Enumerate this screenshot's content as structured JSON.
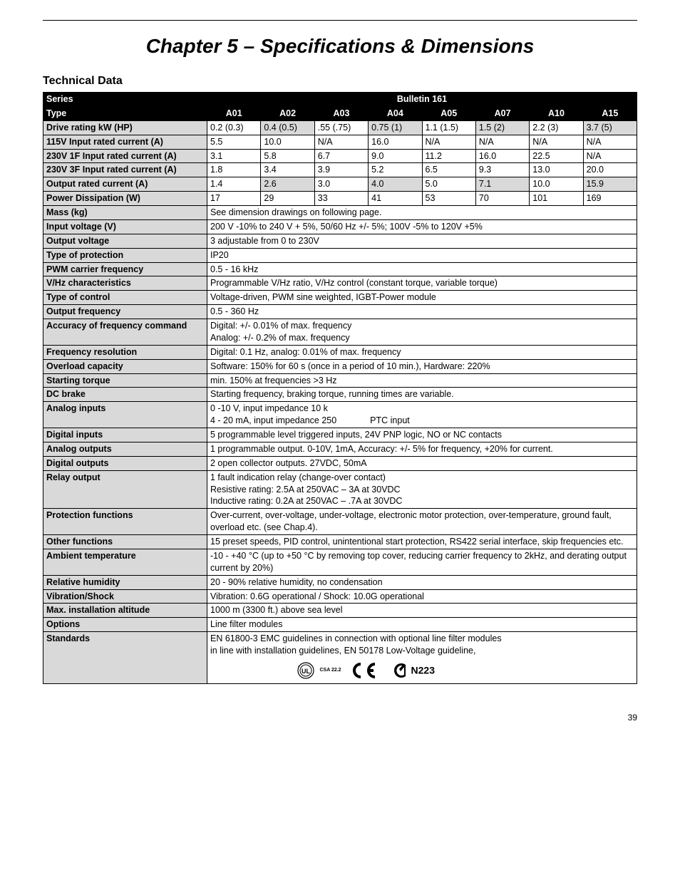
{
  "page": {
    "chapter_title": "Chapter 5 – Specifications & Dimensions",
    "section_title": "Technical Data",
    "page_number": "39"
  },
  "table": {
    "series_label": "Series",
    "series_value": "Bulletin 161",
    "type_label": "Type",
    "type_cols": [
      "A01",
      "A02",
      "A03",
      "A04",
      "A05",
      "A07",
      "A10",
      "A15"
    ],
    "numeric_rows": [
      {
        "label": "Drive rating kW (HP)",
        "cells": [
          "0.2 (0.3)",
          "0.4 (0.5)",
          ".55 (.75)",
          "0.75 (1)",
          "1.1 (1.5)",
          "1.5 (2)",
          "2.2 (3)",
          "3.7 (5)"
        ],
        "shaded": [
          false,
          true,
          false,
          true,
          false,
          true,
          false,
          true
        ]
      },
      {
        "label": "115V Input rated current (A)",
        "cells": [
          "5.5",
          "10.0",
          "N/A",
          "16.0",
          "N/A",
          "N/A",
          "N/A",
          "N/A"
        ],
        "shaded": [
          false,
          false,
          false,
          false,
          false,
          false,
          false,
          false
        ]
      },
      {
        "label": "230V 1F Input rated current (A)",
        "cells": [
          "3.1",
          "5.8",
          "6.7",
          "9.0",
          "11.2",
          "16.0",
          "22.5",
          "N/A"
        ],
        "shaded": [
          false,
          false,
          false,
          false,
          false,
          false,
          false,
          false
        ]
      },
      {
        "label": "230V 3F Input rated current (A)",
        "cells": [
          "1.8",
          "3.4",
          "3.9",
          "5.2",
          "6.5",
          "9.3",
          "13.0",
          "20.0"
        ],
        "shaded": [
          false,
          false,
          false,
          false,
          false,
          false,
          false,
          false
        ]
      },
      {
        "label": "Output rated current (A)",
        "cells": [
          "1.4",
          "2.6",
          "3.0",
          "4.0",
          "5.0",
          "7.1",
          "10.0",
          "15.9"
        ],
        "shaded": [
          false,
          true,
          false,
          true,
          false,
          true,
          false,
          true
        ]
      },
      {
        "label": "Power Dissipation (W)",
        "cells": [
          "17",
          "29",
          "33",
          "41",
          "53",
          "70",
          "101",
          "169"
        ],
        "shaded": [
          false,
          false,
          false,
          false,
          false,
          false,
          false,
          false
        ]
      }
    ],
    "text_rows": [
      {
        "label": "Mass (kg)",
        "value": "See dimension drawings on following page."
      },
      {
        "label": "Input voltage (V)",
        "value": "200 V -10% to 240 V + 5%, 50/60 Hz +/- 5%; 100V -5% to 120V +5%"
      },
      {
        "label": "Output voltage",
        "value": "3      adjustable from 0 to 230V"
      },
      {
        "label": "Type of protection",
        "value": "IP20"
      },
      {
        "label": "PWM carrier frequency",
        "value": "0.5 - 16 kHz"
      },
      {
        "label": "V/Hz characteristics",
        "value": "Programmable V/Hz ratio, V/Hz control (constant torque, variable torque)"
      },
      {
        "label": "Type of control",
        "value": "Voltage-driven, PWM sine weighted, IGBT-Power module"
      },
      {
        "label": "Output frequency",
        "value": "0.5 - 360 Hz"
      }
    ],
    "accuracy_row": {
      "label": "Accuracy of frequency command",
      "line1": "Digital:    +/- 0.01% of max. frequency",
      "line2": "Analog:   +/- 0.2% of max. frequency"
    },
    "text_rows2": [
      {
        "label": "Frequency resolution",
        "value": "Digital: 0.1 Hz, analog: 0.01% of max. frequency"
      },
      {
        "label": "Overload capacity",
        "value": "Software: 150% for 60 s (once in a period of 10 min.), Hardware: 220%"
      },
      {
        "label": "Starting torque",
        "value": "min. 150% at frequencies >3 Hz"
      },
      {
        "label": "DC brake",
        "value": "Starting frequency, braking torque, running times are variable."
      }
    ],
    "analog_inputs_row": {
      "label": "Analog inputs",
      "line1": "0 -10 V, input impedance 10 k",
      "line2_a": "4 - 20 mA, input impedance 250",
      "line2_b": "PTC input"
    },
    "text_rows3": [
      {
        "label": "Digital inputs",
        "value": "5 programmable level triggered inputs, 24V PNP logic, NO or NC contacts"
      },
      {
        "label": "Analog outputs",
        "value": "1 programmable output. 0-10V, 1mA, Accuracy: +/- 5% for frequency, +20% for current."
      },
      {
        "label": "Digital outputs",
        "value": "2 open collector outputs. 27VDC, 50mA"
      }
    ],
    "relay_row": {
      "label": "Relay output",
      "line1": "1 fault indication relay (change-over contact)",
      "line2": "Resistive rating: 2.5A at 250VAC – 3A at 30VDC",
      "line3": "Inductive rating: 0.2A at 250VAC – .7A at 30VDC"
    },
    "protection_row": {
      "label": "Protection functions",
      "value": "Over-current, over-voltage, under-voltage, electronic motor protection, over-temperature, ground fault, overload etc. (see Chap.4)."
    },
    "other_row": {
      "label": "Other functions",
      "value": "15 preset speeds, PID control, unintentional start protection, RS422 serial interface, skip frequencies etc."
    },
    "ambient_row": {
      "label": "Ambient temperature",
      "value": "-10 - +40 °C (up to +50 °C by removing top cover, reducing carrier frequency to 2kHz, and derating output current by 20%)"
    },
    "text_rows4": [
      {
        "label": "Relative humidity",
        "value": "20 - 90% relative humidity, no condensation"
      },
      {
        "label": "Vibration/Shock",
        "value": "Vibration: 0.6G operational / Shock: 10.0G operational"
      },
      {
        "label": "Max. installation altitude",
        "value": "1000 m (3300 ft.) above sea level"
      },
      {
        "label": "Options",
        "value": "Line filter modules"
      }
    ],
    "standards_row": {
      "label": "Standards",
      "line1": "EN 61800-3 EMC guidelines in connection with optional line filter modules",
      "line2": "in line with installation guidelines, EN 50178 Low-Voltage guideline,",
      "csa_text": "CSA 22.2",
      "n223": "N223"
    }
  }
}
